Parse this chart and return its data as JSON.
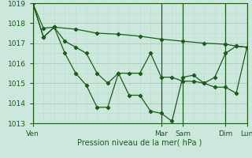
{
  "background_color": "#cce8dc",
  "grid_major_color": "#aaccbb",
  "grid_minor_color": "#bbddd0",
  "line_color": "#1a5c1a",
  "marker_color": "#1a5c1a",
  "xlabel": "Pression niveau de la mer( hPa )",
  "ylim": [
    1013,
    1019
  ],
  "xlim": [
    0,
    120
  ],
  "yticks": [
    1013,
    1014,
    1015,
    1016,
    1017,
    1018,
    1019
  ],
  "day_labels": [
    "Ven",
    "Mar",
    "Sam",
    "Dim",
    "Lun"
  ],
  "day_positions": [
    0,
    72,
    84,
    108,
    120
  ],
  "series1_x": [
    0,
    6,
    12,
    24,
    36,
    48,
    60,
    72,
    84,
    96,
    108,
    114,
    120
  ],
  "series1_y": [
    1019.0,
    1017.75,
    1017.8,
    1017.7,
    1017.5,
    1017.45,
    1017.35,
    1017.2,
    1017.1,
    1017.0,
    1016.95,
    1016.85,
    1016.8
  ],
  "series2_x": [
    0,
    6,
    12,
    18,
    24,
    30,
    36,
    42,
    48,
    54,
    60,
    66,
    72,
    78,
    84,
    90,
    96,
    102,
    108,
    114,
    120
  ],
  "series2_y": [
    1019.0,
    1017.3,
    1017.8,
    1017.1,
    1016.8,
    1016.5,
    1015.5,
    1015.0,
    1015.5,
    1015.5,
    1015.5,
    1016.5,
    1015.3,
    1015.3,
    1015.1,
    1015.1,
    1015.0,
    1015.3,
    1016.5,
    1016.85,
    1016.8
  ],
  "series3_x": [
    0,
    6,
    12,
    18,
    24,
    30,
    36,
    42,
    48,
    54,
    60,
    66,
    72,
    78,
    84,
    90,
    96,
    102,
    108,
    114,
    120
  ],
  "series3_y": [
    1019.0,
    1017.3,
    1017.8,
    1016.5,
    1015.5,
    1014.9,
    1013.8,
    1013.8,
    1015.5,
    1014.4,
    1014.4,
    1013.6,
    1013.5,
    1013.1,
    1015.3,
    1015.4,
    1015.0,
    1014.8,
    1014.8,
    1014.5,
    1016.8
  ]
}
